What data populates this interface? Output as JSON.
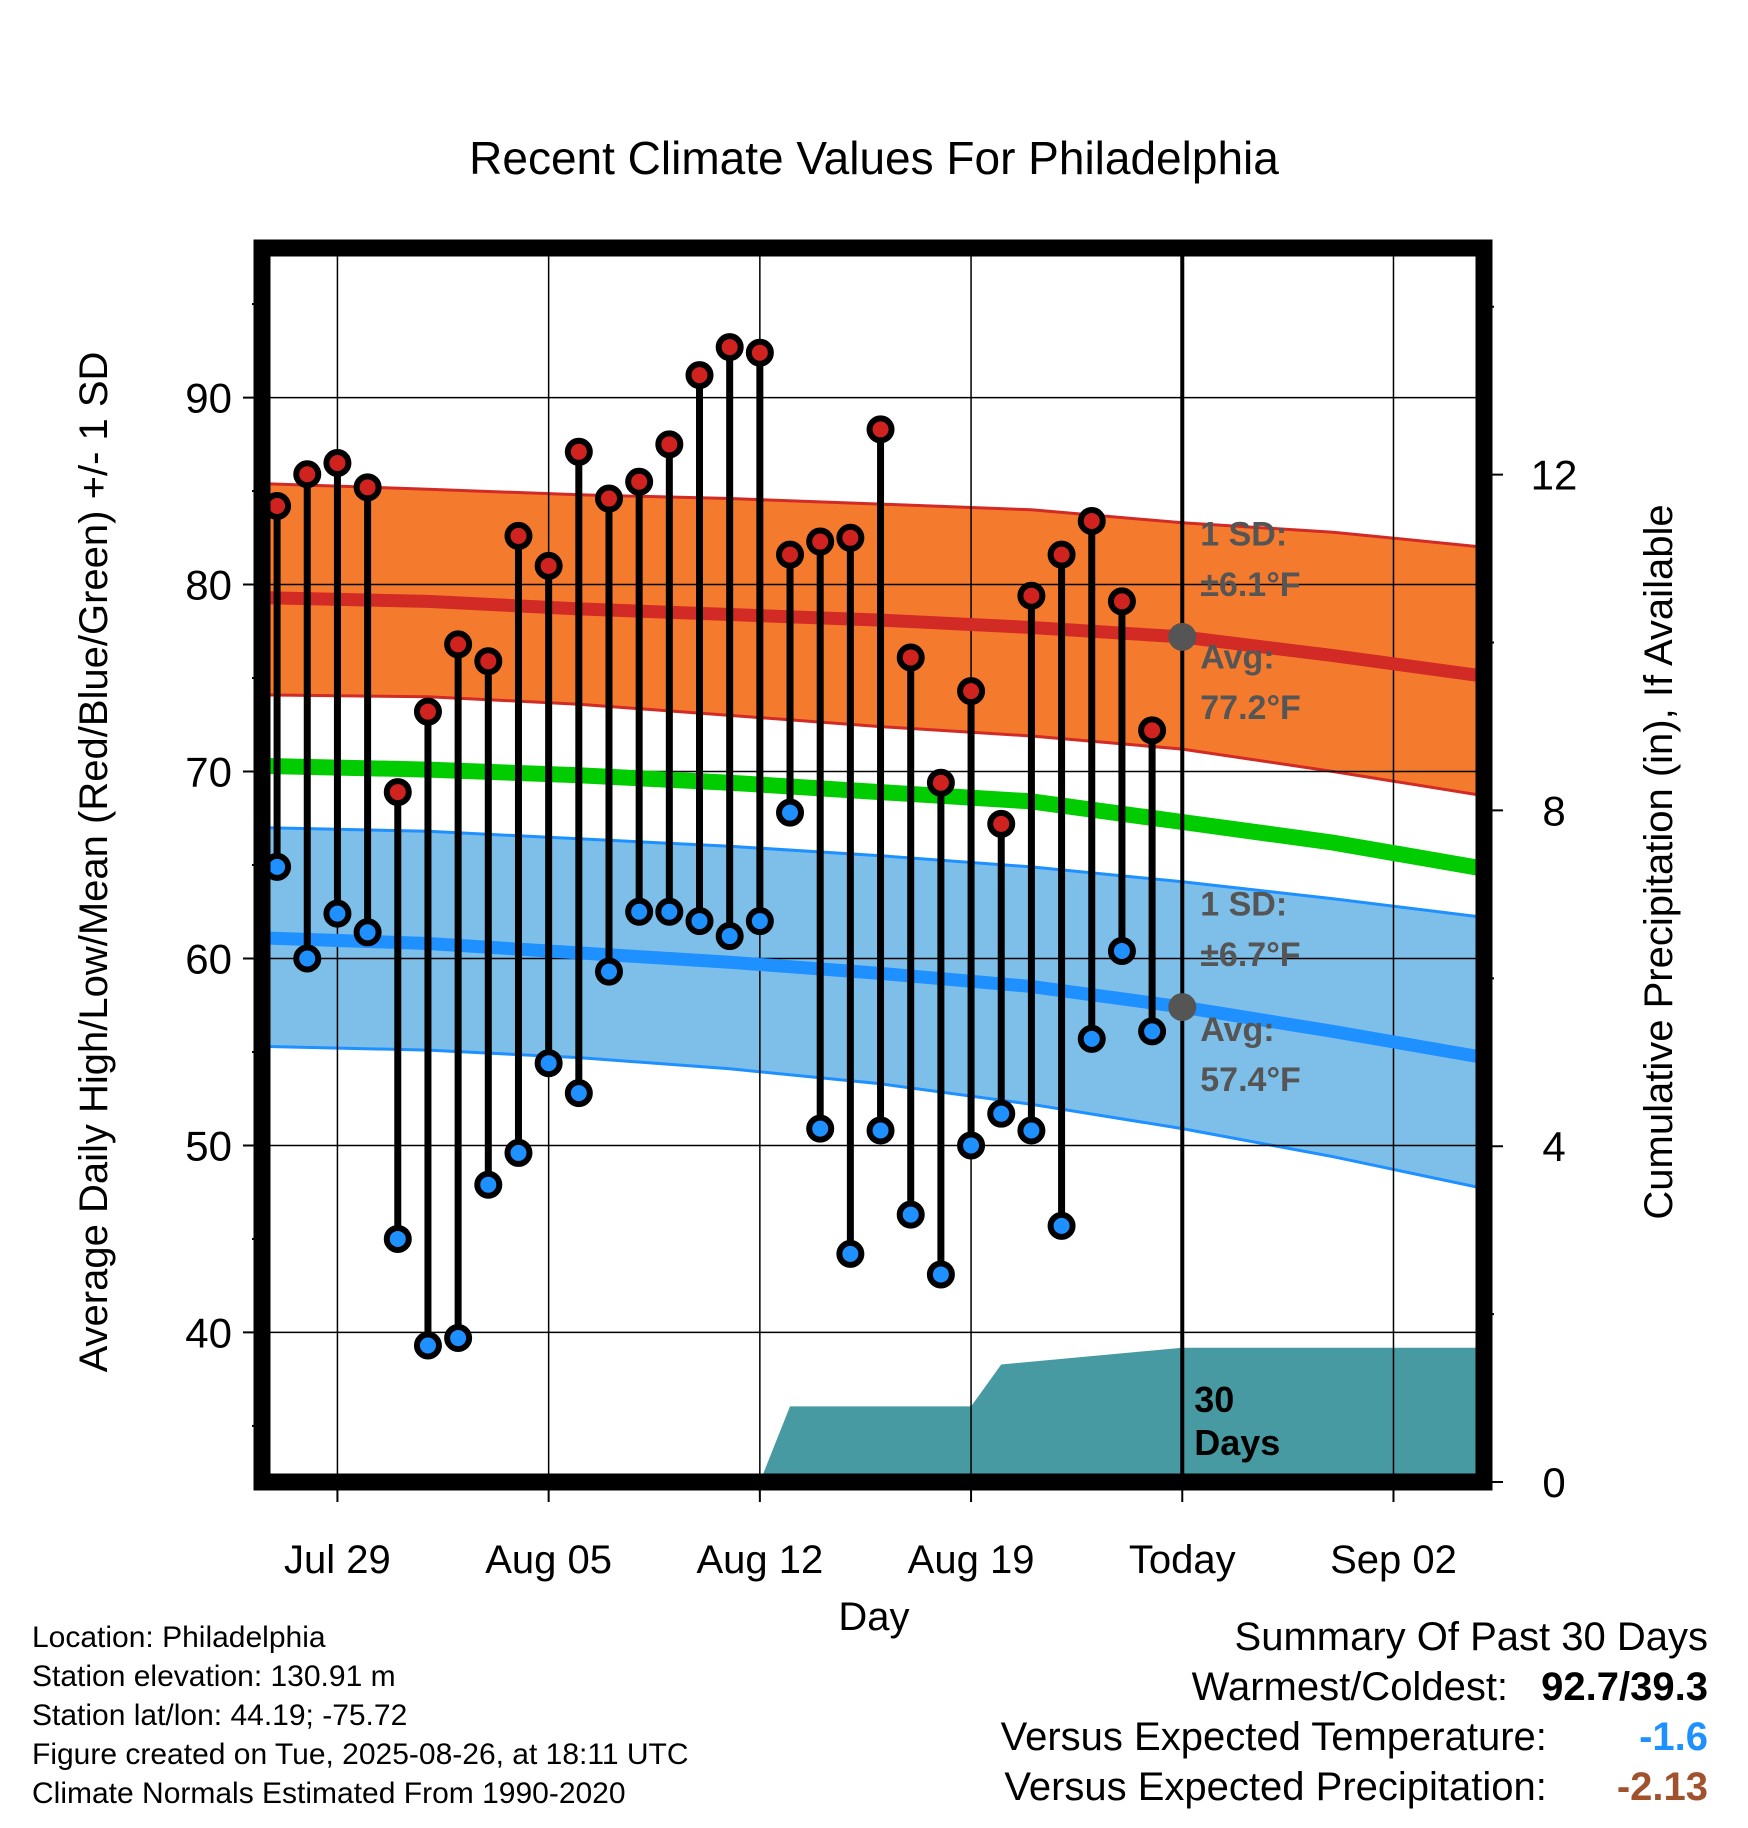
{
  "chart_data": {
    "type": "line",
    "title": "Recent Climate Values For Philadelphia",
    "xlabel": "Day",
    "ylabel": "Average Daily High/Low/Mean (Red/Blue/Green) +/- 1 SD",
    "ylabel_right": "Cumulative Precipitation (in), If Available",
    "x_tick_labels": [
      "Jul 29",
      "Aug 05",
      "Aug 12",
      "Aug 19",
      "Today",
      "Sep 02"
    ],
    "x_tick_days": [
      2,
      9,
      16,
      23,
      30,
      37
    ],
    "xlim_days": [
      -0.5,
      40
    ],
    "ylim": [
      32,
      98
    ],
    "y_ticks": [
      40,
      50,
      60,
      70,
      80,
      90
    ],
    "ylim_right": [
      0,
      14.7
    ],
    "y_ticks_right": [
      0,
      4,
      8,
      12
    ],
    "today_day": 30,
    "high_temps": [
      84.2,
      85.9,
      86.5,
      85.2,
      68.9,
      73.2,
      76.8,
      75.9,
      82.6,
      81.0,
      87.1,
      84.6,
      85.5,
      87.5,
      91.2,
      92.7,
      92.4,
      81.6,
      82.3,
      82.5,
      88.3,
      76.1,
      69.4,
      74.3,
      67.2,
      79.4,
      81.6,
      83.4,
      79.1,
      72.2
    ],
    "low_temps": [
      64.9,
      60.0,
      62.4,
      61.4,
      45.0,
      39.3,
      39.7,
      47.9,
      49.6,
      54.4,
      52.8,
      59.3,
      62.5,
      62.5,
      62.0,
      61.2,
      62.0,
      67.8,
      50.9,
      44.2,
      50.8,
      46.3,
      43.1,
      50.0,
      51.7,
      50.8,
      45.7,
      55.7,
      60.4,
      56.1
    ],
    "normal_high": {
      "days": [
        -0.5,
        5,
        10,
        15,
        20,
        25,
        30,
        35,
        40
      ],
      "mean": [
        79.3,
        79.1,
        78.7,
        78.4,
        78.1,
        77.7,
        77.2,
        76.2,
        75.1
      ],
      "upper": [
        85.4,
        85.1,
        84.8,
        84.6,
        84.3,
        84.0,
        83.3,
        82.8,
        82.0
      ],
      "lower": [
        74.1,
        74.0,
        73.6,
        73.0,
        72.4,
        71.9,
        71.2,
        70.0,
        68.7
      ]
    },
    "normal_low": {
      "days": [
        -0.5,
        5,
        10,
        15,
        20,
        25,
        30,
        35,
        40
      ],
      "mean": [
        61.1,
        60.8,
        60.3,
        59.8,
        59.2,
        58.5,
        57.4,
        56.1,
        54.7
      ],
      "upper": [
        67.0,
        66.8,
        66.4,
        66.0,
        65.5,
        64.9,
        64.1,
        63.2,
        62.2
      ],
      "lower": [
        55.3,
        55.1,
        54.7,
        54.1,
        53.3,
        52.2,
        50.9,
        49.4,
        47.7
      ]
    },
    "normal_mean": {
      "days": [
        -0.5,
        5,
        10,
        15,
        20,
        25,
        30,
        35,
        40
      ],
      "values": [
        70.3,
        70.1,
        69.8,
        69.4,
        68.9,
        68.4,
        67.3,
        66.2,
        64.8
      ]
    },
    "precip_cumulative": {
      "days": [
        16,
        17,
        23,
        24,
        30,
        40
      ],
      "values": [
        0,
        0.9,
        0.9,
        1.4,
        1.6,
        1.6
      ]
    },
    "annotations": {
      "high_sd": "1 SD:",
      "high_sd_value": "±6.1°F",
      "high_avg": "Avg:",
      "high_avg_value": "77.2°F",
      "low_sd": "1 SD:",
      "low_sd_value": "±6.7°F",
      "low_avg": "Avg:",
      "low_avg_value": "57.4°F",
      "precip_label_1": "30",
      "precip_label_2": "Days"
    },
    "colors": {
      "high_band": "#f47b2d",
      "high_line": "#d22a25",
      "low_band": "#7dbfe8",
      "low_line": "#1e90ff",
      "mean_line": "#00cc00",
      "precip": "#479aa1",
      "high_dot": "#d0221f",
      "low_dot": "#1e90ff",
      "avg_marker": "#555555"
    },
    "grid": true
  },
  "info": {
    "location": "Location: Philadelphia",
    "elevation": "Station elevation: 130.91 m",
    "latlon": "Station lat/lon: 44.19; -75.72",
    "created": "Figure created on Tue, 2025-08-26, at 18:11 UTC",
    "normals": "Climate Normals Estimated From 1990-2020"
  },
  "summary": {
    "title": "Summary Of Past 30 Days",
    "warm_cold_label": "Warmest/Coldest:",
    "warm_cold_value": "92.7/39.3",
    "temp_label": "Versus Expected Temperature:",
    "temp_value": "-1.6",
    "temp_color": "#1e90ff",
    "precip_label": "Versus Expected Precipitation:",
    "precip_value": "-2.13",
    "precip_color": "#a0522d"
  }
}
